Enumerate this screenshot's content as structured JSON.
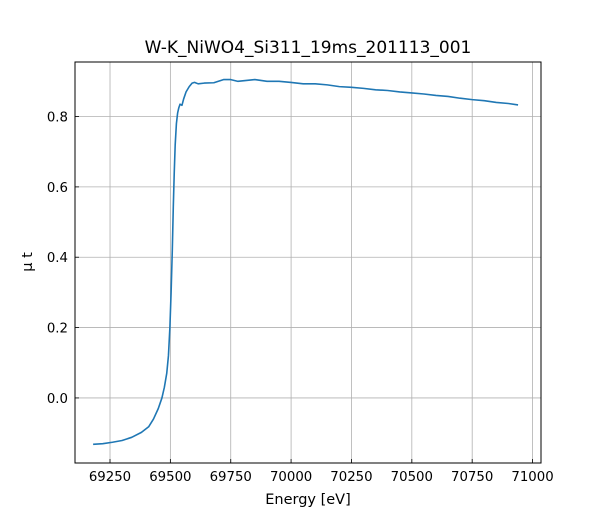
{
  "chart_data": {
    "type": "line",
    "title": "W-K_NiWO4_Si311_19ms_201113_001",
    "xlabel": "Energy [eV]",
    "ylabel": "μ t",
    "xlim": [
      69105,
      71035
    ],
    "ylim": [
      -0.185,
      0.955
    ],
    "xticks": [
      69250,
      69500,
      69750,
      70000,
      70250,
      70500,
      70750,
      71000
    ],
    "yticks": [
      0.0,
      0.2,
      0.4,
      0.6,
      0.8
    ],
    "xtick_labels": [
      "69250",
      "69500",
      "69750",
      "70000",
      "70250",
      "70500",
      "70750",
      "71000"
    ],
    "ytick_labels": [
      "0.0",
      "0.2",
      "0.4",
      "0.6",
      "0.8"
    ],
    "grid": true,
    "series": [
      {
        "color": "#1f77b4",
        "x": [
          69180,
          69220,
          69260,
          69300,
          69340,
          69380,
          69410,
          69430,
          69450,
          69465,
          69475,
          69485,
          69492,
          69498,
          69503,
          69508,
          69512,
          69516,
          69520,
          69525,
          69530,
          69535,
          69540,
          69548,
          69555,
          69565,
          69578,
          69590,
          69600,
          69615,
          69640,
          69680,
          69720,
          69750,
          69780,
          69820,
          69850,
          69900,
          69950,
          70000,
          70050,
          70100,
          70150,
          70200,
          70250,
          70300,
          70350,
          70400,
          70450,
          70500,
          70550,
          70600,
          70650,
          70700,
          70750,
          70800,
          70850,
          70900,
          70940
        ],
        "y": [
          -0.132,
          -0.13,
          -0.126,
          -0.121,
          -0.112,
          -0.098,
          -0.082,
          -0.06,
          -0.03,
          0.0,
          0.03,
          0.07,
          0.12,
          0.2,
          0.3,
          0.42,
          0.54,
          0.64,
          0.72,
          0.78,
          0.81,
          0.825,
          0.835,
          0.832,
          0.85,
          0.87,
          0.885,
          0.895,
          0.897,
          0.893,
          0.895,
          0.896,
          0.905,
          0.905,
          0.9,
          0.903,
          0.905,
          0.9,
          0.9,
          0.897,
          0.893,
          0.893,
          0.89,
          0.885,
          0.883,
          0.88,
          0.876,
          0.874,
          0.87,
          0.867,
          0.864,
          0.86,
          0.857,
          0.852,
          0.848,
          0.845,
          0.84,
          0.837,
          0.833
        ]
      }
    ]
  }
}
